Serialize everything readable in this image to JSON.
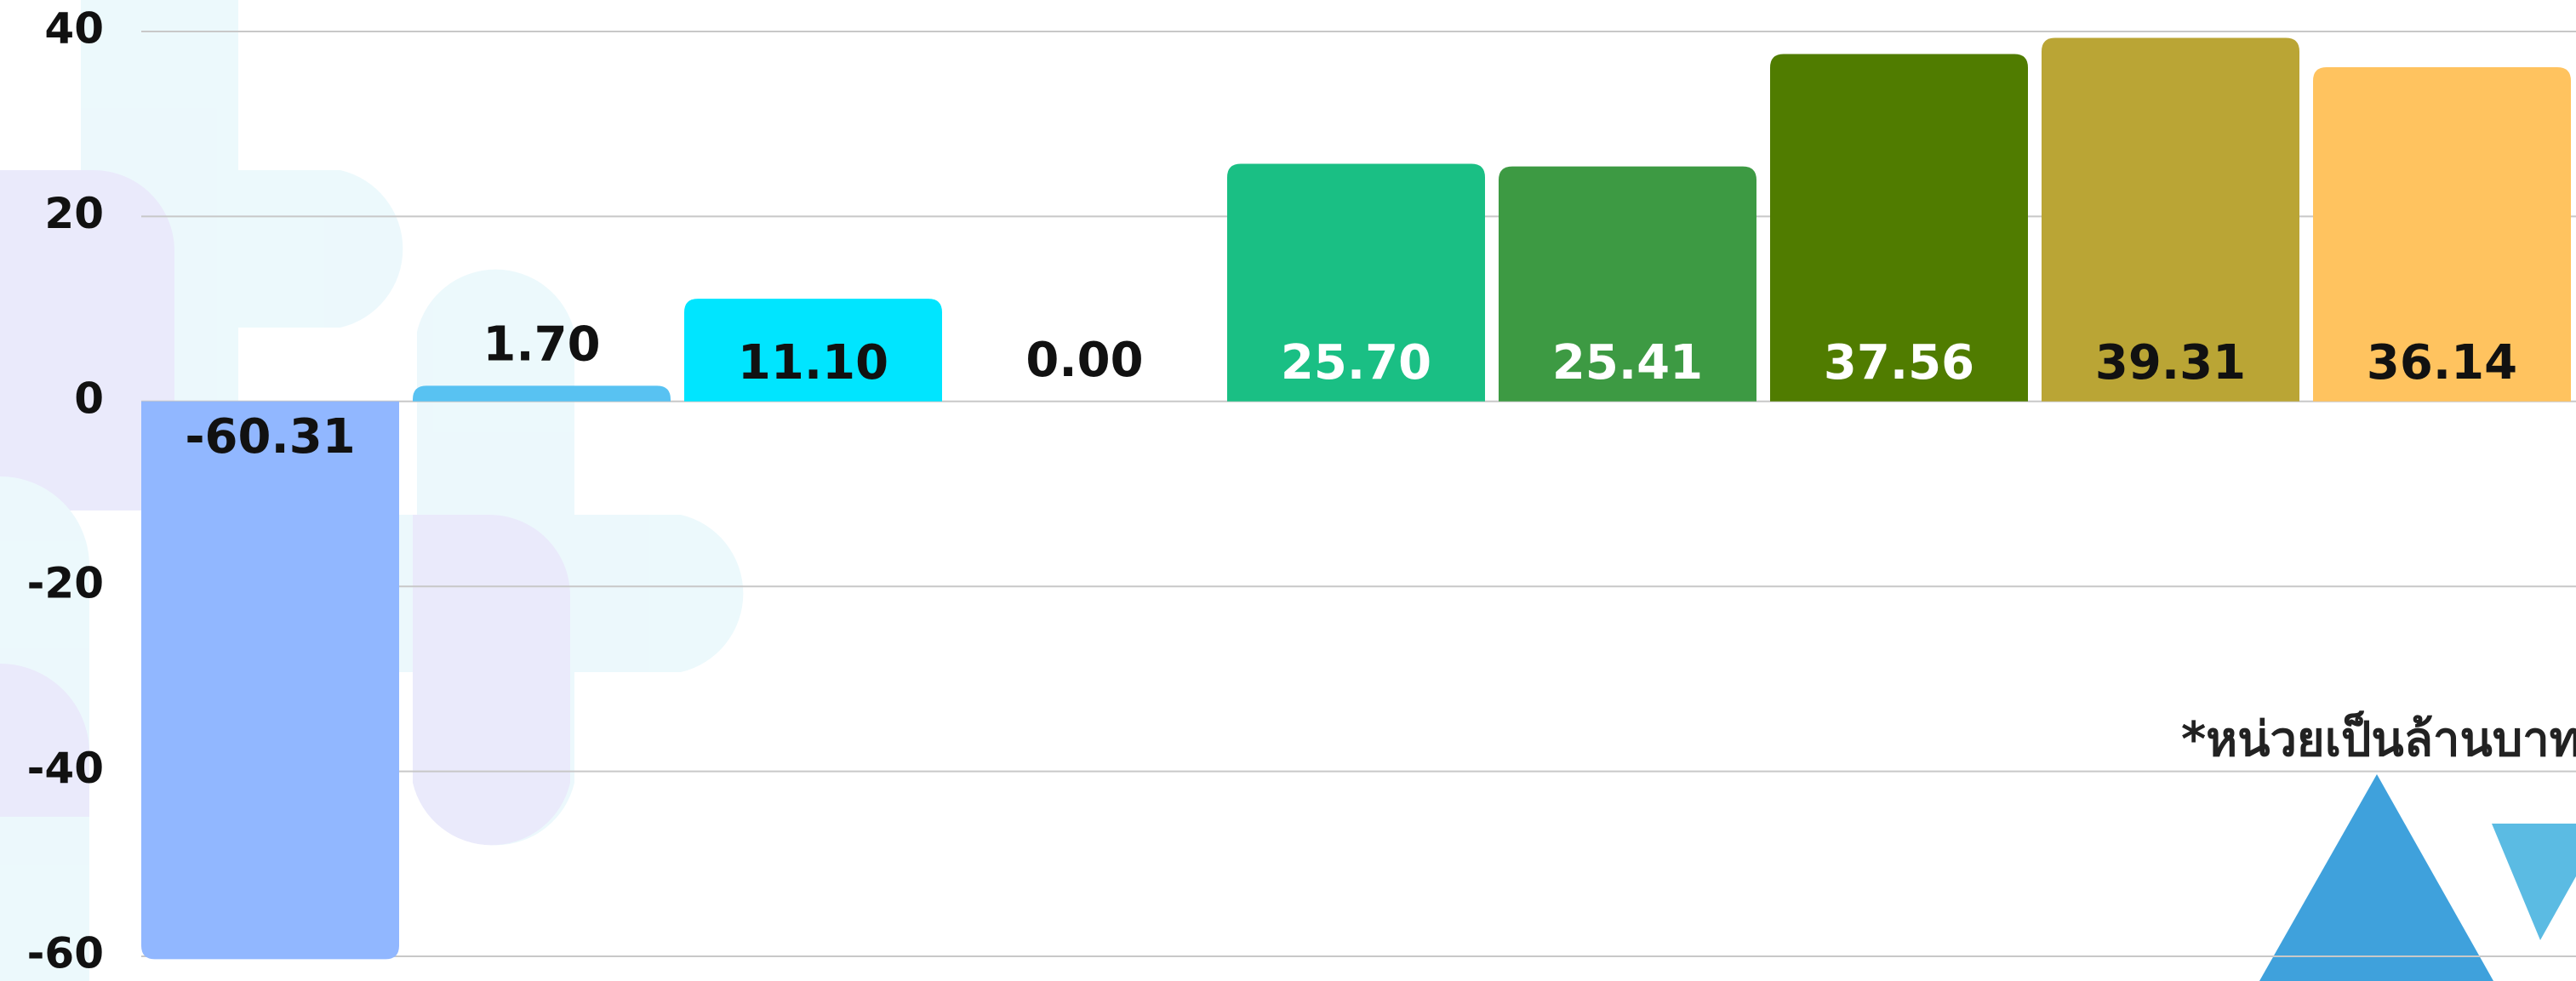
{
  "chart_data": {
    "type": "bar",
    "annotation": "*หน่วยเป็นล้านบาท",
    "categories": [
      null,
      null,
      null,
      null,
      null,
      null,
      null,
      null,
      null
    ],
    "values": [
      -60.31,
      1.7,
      11.1,
      0,
      25.7,
      25.41,
      37.56,
      39.31,
      36.14
    ],
    "value_labels": [
      "-60.31",
      "1.70",
      "11.10",
      "0.00",
      "25.70",
      "25.41",
      "37.56",
      "39.31",
      "36.14"
    ],
    "colors": [
      "#91b7ff",
      "#58c2f2",
      "#00e5ff",
      "#9e9e9e",
      "#1abf84",
      "#3d9a43",
      "#507c00",
      "#baa535",
      "#ffc35f"
    ],
    "ylim": [
      -60,
      40
    ],
    "yticks": [
      -60,
      -40,
      -20,
      0,
      20,
      40
    ],
    "grid": true
  }
}
